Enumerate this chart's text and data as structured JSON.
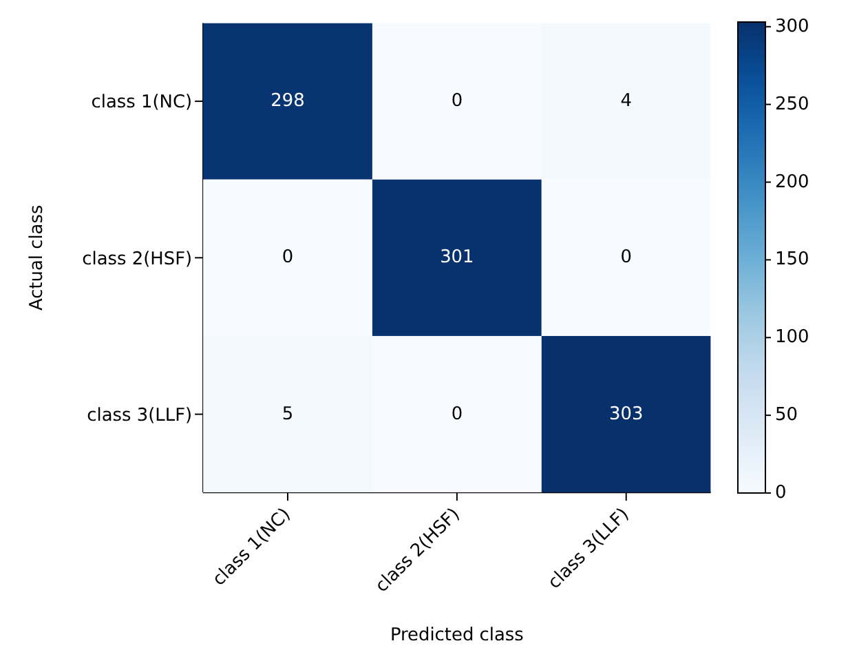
{
  "chart_data": {
    "type": "heatmap",
    "xlabel": "Predicted class",
    "ylabel": "Actual class",
    "categories": [
      "class 1(NC)",
      "class 2(HSF)",
      "class 3(LLF)"
    ],
    "y_categories": [
      "class 1(NC)",
      "class 2(HSF)",
      "class 3(LLF)"
    ],
    "cells": [
      [
        298,
        0,
        4
      ],
      [
        0,
        301,
        0
      ],
      [
        5,
        0,
        303
      ]
    ],
    "clim": [
      0,
      303
    ],
    "cticks": [
      0,
      50,
      100,
      150,
      200,
      250,
      300
    ],
    "data_labels": true
  }
}
